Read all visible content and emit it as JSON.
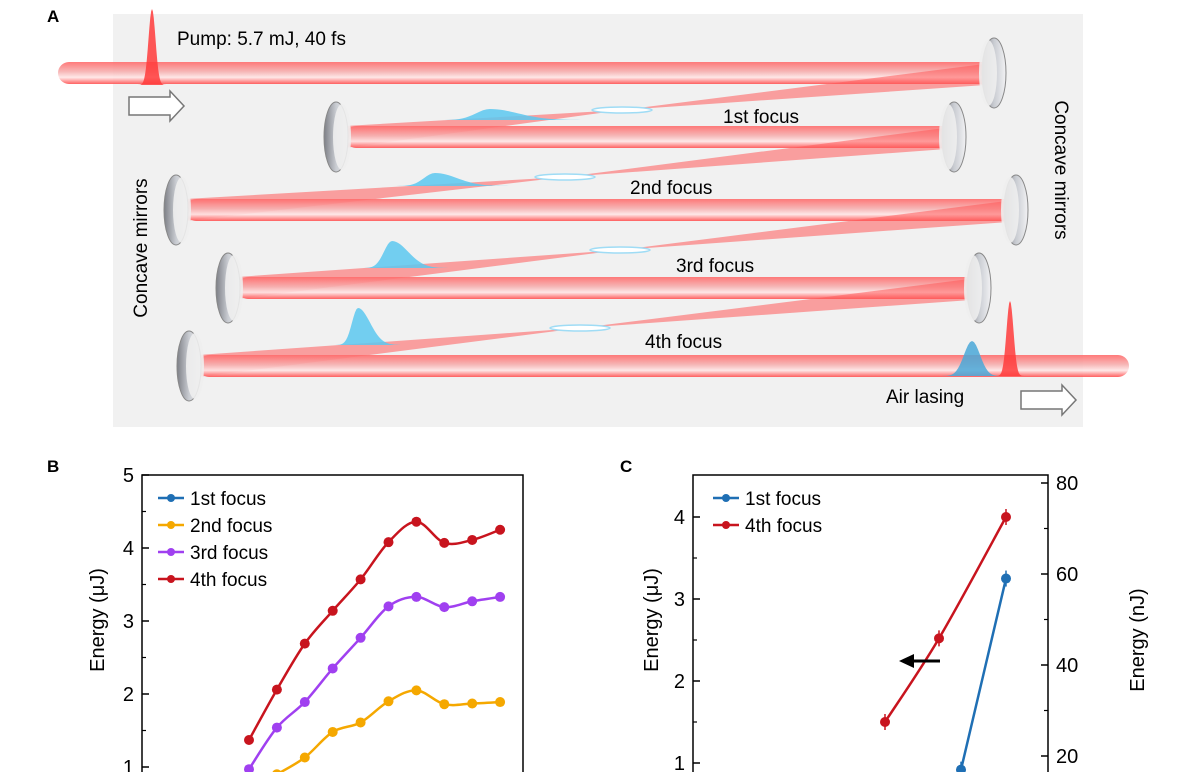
{
  "panel_a": {
    "label": "A",
    "pump_label": "Pump: 5.7 mJ, 40 fs",
    "focus_labels": [
      "1st focus",
      "2nd focus",
      "3rd focus",
      "4th focus"
    ],
    "left_mirrors_label": "Concave mirrors",
    "right_mirrors_label": "Concave mirrors",
    "output_label": "Air lasing",
    "colors": {
      "beam": "#ff5a5a",
      "pulse_red": "#ff3b3b",
      "pulse_blue": "#5cc8f0",
      "background": "#f1f1f1"
    }
  },
  "chart_data": [
    {
      "panel_label": "B",
      "type": "line",
      "ylabel": "Energy (μJ)",
      "yticks": [
        "1",
        "2",
        "3",
        "4",
        "5"
      ],
      "ylim": [
        1,
        5
      ],
      "legend_placement": "top-left",
      "series": [
        {
          "name": "1st focus",
          "color": "#1f6fb4",
          "values": []
        },
        {
          "name": "2nd focus",
          "color": "#f5a800",
          "values": [
            null,
            0.9,
            1.13,
            1.48,
            1.61,
            1.9,
            2.05,
            1.86,
            1.87,
            1.89
          ]
        },
        {
          "name": "3rd focus",
          "color": "#a040f0",
          "values": [
            0.97,
            1.54,
            1.89,
            2.35,
            2.77,
            3.2,
            3.33,
            3.19,
            3.27,
            3.33
          ]
        },
        {
          "name": "4th focus",
          "color": "#c8141e",
          "values": [
            1.37,
            2.06,
            2.69,
            3.14,
            3.57,
            4.08,
            4.36,
            4.07,
            4.11,
            4.25
          ]
        }
      ]
    },
    {
      "panel_label": "C",
      "type": "line",
      "ylabel": "Energy (μJ)",
      "ylabel_right": "Energy (nJ)",
      "yticks": [
        "1",
        "2",
        "3",
        "4"
      ],
      "yticks_right": [
        "20",
        "40",
        "60",
        "80"
      ],
      "ylim": [
        1,
        4.5
      ],
      "ylim_right": [
        20,
        80
      ],
      "legend_placement": "top-left",
      "arrow": "left",
      "series": [
        {
          "name": "1st focus",
          "color": "#1f6fb4",
          "axis": "right",
          "values": [
            17,
            59
          ]
        },
        {
          "name": "4th focus",
          "color": "#c8141e",
          "axis": "left",
          "values": [
            1.5,
            2.52,
            4.0
          ]
        }
      ]
    }
  ]
}
